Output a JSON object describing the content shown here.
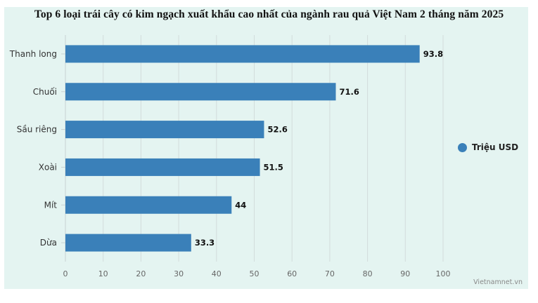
{
  "chart_data": {
    "type": "bar",
    "orientation": "horizontal",
    "title": "Top 6 loại trái cây có kim ngạch xuất khẩu cao nhất của ngành rau quả Việt Nam 2 tháng năm 2025",
    "categories": [
      "Thanh long",
      "Chuối",
      "Sầu riêng",
      "Xoài",
      "Mít",
      "Dừa"
    ],
    "series": [
      {
        "name": "Triệu USD",
        "values": [
          93.8,
          71.6,
          52.6,
          51.5,
          44,
          33.3
        ]
      }
    ],
    "value_labels": [
      "93.8",
      "71.6",
      "52.6",
      "51.5",
      "44",
      "33.3"
    ],
    "xlim": [
      0,
      100
    ],
    "xticks": [
      0,
      10,
      20,
      30,
      40,
      50,
      60,
      70,
      80,
      90,
      100
    ],
    "xtick_labels": [
      "0",
      "10",
      "20",
      "30",
      "40",
      "50",
      "60",
      "70",
      "80",
      "90",
      "100"
    ],
    "grid": true,
    "legend_position": "right",
    "bar_color": "#3a80b9"
  },
  "credit": "Vietnamnet.vn"
}
